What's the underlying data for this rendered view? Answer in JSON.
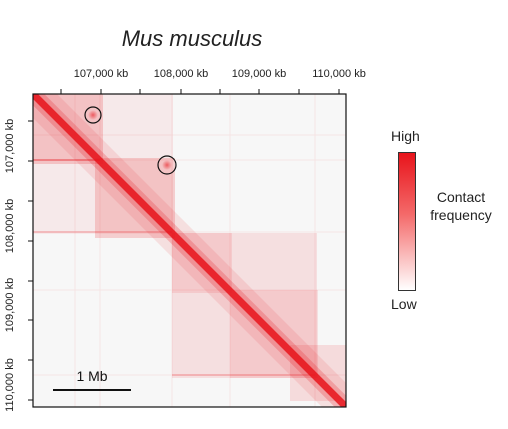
{
  "title": "Mus musculus",
  "axis_ticks": [
    "107,000 kb",
    "108,000 kb",
    "109,000 kb",
    "110,000 kb"
  ],
  "legend": {
    "high": "High",
    "low": "Low",
    "label": "Contact frequency",
    "colors": {
      "high": "#e8141b",
      "low": "#ffffff"
    }
  },
  "scale_bar": {
    "label": "1 Mb"
  },
  "colors": {
    "contact": "#e8141b",
    "frame": "#111111"
  }
}
